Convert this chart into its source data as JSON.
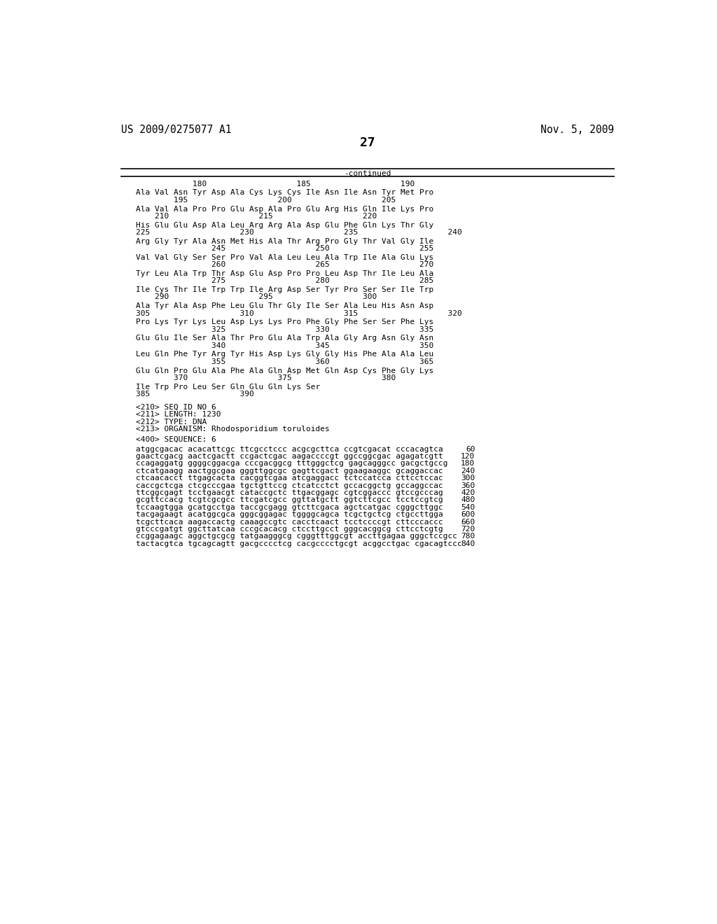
{
  "header_left": "US 2009/0275077 A1",
  "header_right": "Nov. 5, 2009",
  "page_number": "27",
  "continued_label": "-continued",
  "background_color": "#ffffff",
  "text_color": "#000000",
  "font_size_header": 10.5,
  "font_size_body": 8.0,
  "font_size_page": 13,
  "seq_blocks": [
    {
      "seq": "Ala Val Asn Tyr Asp Ala Cys Lys Cys Ile Asn Ile Asn Tyr Met Pro",
      "num": "        195                   200                   205"
    },
    {
      "seq": "Ala Val Ala Pro Pro Glu Asp Ala Pro Glu Arg His Gln Ile Lys Pro",
      "num": "    210                   215                   220"
    },
    {
      "seq": "His Glu Glu Asp Ala Leu Arg Arg Ala Asp Glu Phe Gln Lys Thr Gly",
      "num": "225                   230                   235                   240"
    },
    {
      "seq": "Arg Gly Tyr Ala Asn Met His Ala Thr Arg Pro Gly Thr Val Gly Ile",
      "num": "                245                   250                   255"
    },
    {
      "seq": "Val Val Gly Ser Ser Pro Val Ala Leu Leu Ala Trp Ile Ala Glu Lys",
      "num": "                260                   265                   270"
    },
    {
      "seq": "Tyr Leu Ala Trp Thr Asp Glu Asp Pro Pro Leu Asp Thr Ile Leu Ala",
      "num": "                275                   280                   285"
    },
    {
      "seq": "Ile Cys Thr Ile Trp Trp Ile Arg Asp Ser Tyr Pro Ser Ser Ile Trp",
      "num": "    290                   295                   300"
    },
    {
      "seq": "Ala Tyr Ala Asp Phe Leu Glu Thr Gly Ile Ser Ala Leu His Asn Asp",
      "num": "305                   310                   315                   320"
    },
    {
      "seq": "Pro Lys Tyr Lys Leu Asp Lys Lys Pro Phe Gly Phe Ser Ser Phe Lys",
      "num": "                325                   330                   335"
    },
    {
      "seq": "Glu Glu Ile Ser Ala Thr Pro Glu Ala Trp Ala Gly Arg Asn Gly Asn",
      "num": "                340                   345                   350"
    },
    {
      "seq": "Leu Gln Phe Tyr Arg Tyr His Asp Lys Gly Gly His Phe Ala Ala Leu",
      "num": "                355                   360                   365"
    },
    {
      "seq": "Glu Gln Pro Glu Ala Phe Ala Gln Asp Met Gln Asp Cys Phe Gly Lys",
      "num": "        370                   375                   380"
    },
    {
      "seq": "Ile Trp Pro Leu Ser Gln Glu Gln Lys Ser",
      "num": "385                   390"
    }
  ],
  "ruler_line": "            180                   185                   190",
  "meta_lines": [
    "<210> SEQ ID NO 6",
    "<211> LENGTH: 1230",
    "<212> TYPE: DNA",
    "<213> ORGANISM: Rhodosporidium toruloides"
  ],
  "sequence_label": "<400> SEQUENCE: 6",
  "dna_sequences": [
    {
      "seq": "atggcgacac acacattcgc ttcgcctccc acgcgcttca ccgtcgacat cccacagtca",
      "num": "60"
    },
    {
      "seq": "gaactcgacg aactcgactt ccgactcgac aagaccccgt ggccggcgac agagatcgtt",
      "num": "120"
    },
    {
      "seq": "ccagaggatg ggggcggacga cccgacggcg tttgggctcg gagcagggcc gacgctgccg",
      "num": "180"
    },
    {
      "seq": "ctcatgaagg aactggcgaa gggttggcgc gagttcgact ggaagaaggc gcaggaccac",
      "num": "240"
    },
    {
      "seq": "ctcaacacct ttgagcacta cacggtcgaa atcgaggacc tctccatcca cttcctccac",
      "num": "300"
    },
    {
      "seq": "caccgctcga ctcgcccgaa tgctgttccg ctcatcctct gccacggctg gccaggccac",
      "num": "360"
    },
    {
      "seq": "ttcggcgagt tcctgaacgt cataccgctc ttgacggagc cgtcggaccc gtccgcccag",
      "num": "420"
    },
    {
      "seq": "gcgttccacg tcgtcgcgcc ttcgatcgcc ggttatgctt ggtcttcgcc tcctccgtcg",
      "num": "480"
    },
    {
      "seq": "tccaagtgga gcatgcctga taccgcgagg gtcttcgaca agctcatgac cgggcttggc",
      "num": "540"
    },
    {
      "seq": "tacgagaagt acatggcgca gggcggagac tggggcagca tcgctgctcg ctgccttgga",
      "num": "600"
    },
    {
      "seq": "tcgcttcaca aagaccactg caaagccgtc cacctcaact tcctccccgt cttcccaccc",
      "num": "660"
    },
    {
      "seq": "gtcccgatgt ggcttatcaa cccgcacacg ctccttgcct gggcacggcg cttcctcgtg",
      "num": "720"
    },
    {
      "seq": "ccggagaagc aggctgcgcg tatgaagggcg cgggtttggcgt accttgagaa gggctccgcc",
      "num": "780"
    },
    {
      "seq": "tactacgtca tgcagcagtt gacgcccctcg cacgcccctgcgt acggcctgac cgacagtccc",
      "num": "840"
    }
  ]
}
